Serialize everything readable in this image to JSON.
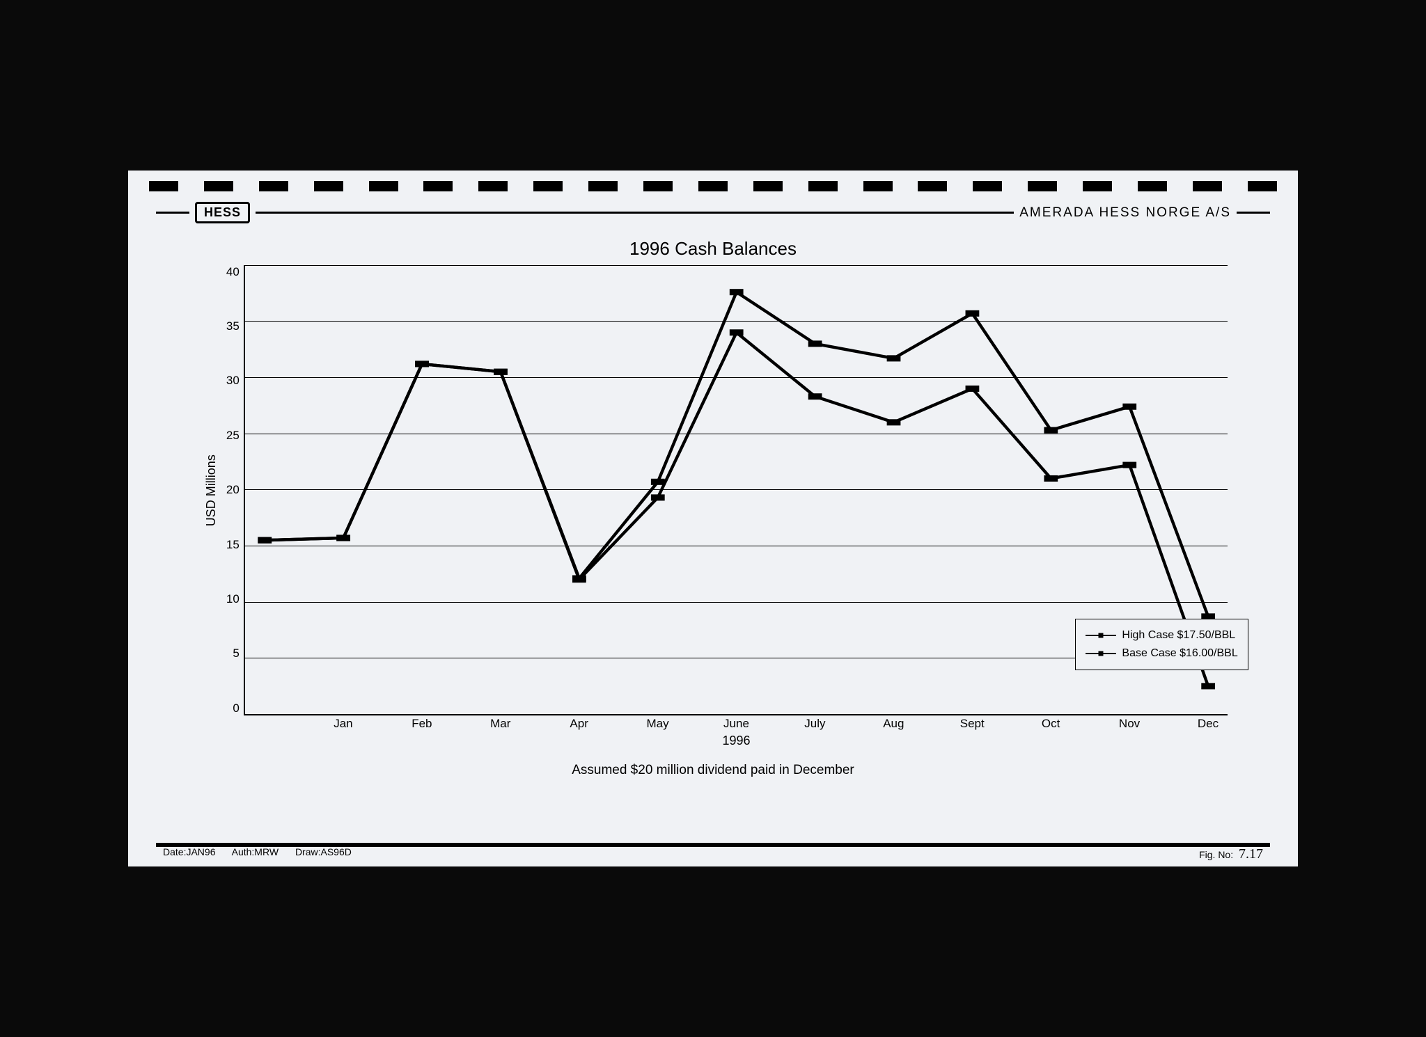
{
  "header": {
    "logo_text": "HESS",
    "company_name": "AMERADA HESS NORGE A/S"
  },
  "chart": {
    "type": "line",
    "title": "1996 Cash Balances",
    "title_fontsize": 26,
    "ylabel": "USD Millions",
    "label_fontsize": 18,
    "ylim": [
      0,
      40
    ],
    "ytick_step": 5,
    "yticks": [
      40,
      35,
      30,
      25,
      20,
      15,
      10,
      5,
      0
    ],
    "x_categories": [
      "Jan",
      "Feb",
      "Mar",
      "Apr",
      "May",
      "June",
      "July",
      "Aug",
      "Sept",
      "Oct",
      "Nov",
      "Dec"
    ],
    "x_year": "1996",
    "x_start_value": 15.5,
    "series": [
      {
        "name": "High Case $17.50/BBL",
        "color": "#000000",
        "line_width": 2,
        "marker": "square",
        "marker_size": 7,
        "values": [
          15.7,
          31.2,
          30.5,
          12.1,
          20.7,
          37.6,
          33.0,
          31.7,
          35.7,
          25.3,
          27.4,
          8.7
        ]
      },
      {
        "name": "Base Case $16.00/BBL",
        "color": "#000000",
        "line_width": 2,
        "marker": "square",
        "marker_size": 7,
        "values": [
          15.7,
          31.2,
          30.5,
          12.0,
          19.3,
          34.0,
          28.3,
          26.0,
          29.0,
          21.0,
          22.2,
          2.5
        ]
      }
    ],
    "background_color": "#f0f2f5",
    "grid_color": "#000000",
    "subtitle": "Assumed $20 million dividend paid in December"
  },
  "legend": {
    "items": [
      "High Case $17.50/BBL",
      "Base Case $16.00/BBL"
    ]
  },
  "footer": {
    "date": "Date:JAN96",
    "auth": "Auth:MRW",
    "draw": "Draw:AS96D",
    "fig_label": "Fig. No:",
    "fig_no": "7.17"
  },
  "binding_hole_count": 21
}
